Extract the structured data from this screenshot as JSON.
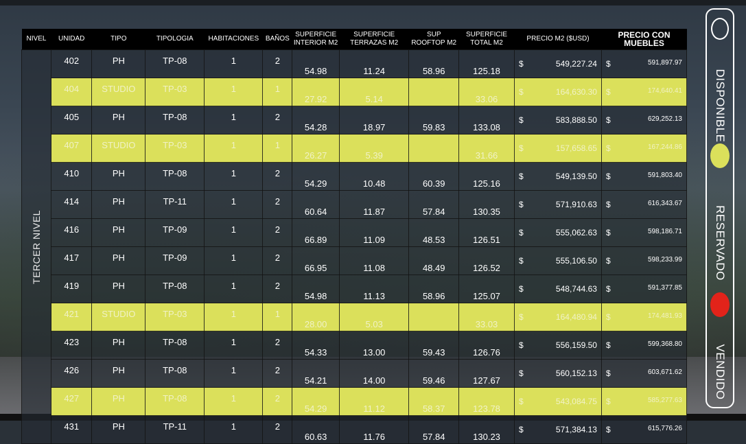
{
  "headers": [
    "NIVEL",
    "UNIDAD",
    "TIPO",
    "TIPOLOGIA",
    "HABITACIONES",
    "BAÑOS",
    "SUPERFICIE INTERIOR M2",
    "SUPERFICIE TERRAZAS M2",
    "SUP ROOFTOP M2",
    "SUPERFICIE TOTAL M2",
    "PRECIO M2 ($USD)",
    "PRECIO CON MUEBLES"
  ],
  "level_label": "TERCER NIVEL",
  "currency_symbol": "$",
  "rows": [
    {
      "unidad": "402",
      "tipo": "PH",
      "tipologia": "TP-08",
      "hab": "1",
      "banos": "2",
      "interior": "54.98",
      "terrazas": "11.24",
      "rooftop": "58.96",
      "total": "125.18",
      "precio": "549,227.24",
      "muebles": "591,897.97",
      "status": "disponible"
    },
    {
      "unidad": "404",
      "tipo": "STUDIO",
      "tipologia": "TP-03",
      "hab": "1",
      "banos": "1",
      "interior": "27.92",
      "terrazas": "5.14",
      "rooftop": "",
      "total": "33.06",
      "precio": "164,630.30",
      "muebles": "174,640.41",
      "status": "reservado"
    },
    {
      "unidad": "405",
      "tipo": "PH",
      "tipologia": "TP-08",
      "hab": "1",
      "banos": "2",
      "interior": "54.28",
      "terrazas": "18.97",
      "rooftop": "59.83",
      "total": "133.08",
      "precio": "583,888.50",
      "muebles": "629,252.13",
      "status": "disponible"
    },
    {
      "unidad": "407",
      "tipo": "STUDIO",
      "tipologia": "TP-03",
      "hab": "1",
      "banos": "1",
      "interior": "26.27",
      "terrazas": "5.39",
      "rooftop": "",
      "total": "31.66",
      "precio": "157,658.65",
      "muebles": "167,244.86",
      "status": "reservado"
    },
    {
      "unidad": "410",
      "tipo": "PH",
      "tipologia": "TP-08",
      "hab": "1",
      "banos": "2",
      "interior": "54.29",
      "terrazas": "10.48",
      "rooftop": "60.39",
      "total": "125.16",
      "precio": "549,139.50",
      "muebles": "591,803.40",
      "status": "disponible"
    },
    {
      "unidad": "414",
      "tipo": "PH",
      "tipologia": "TP-11",
      "hab": "1",
      "banos": "2",
      "interior": "60.64",
      "terrazas": "11.87",
      "rooftop": "57.84",
      "total": "130.35",
      "precio": "571,910.63",
      "muebles": "616,343.67",
      "status": "disponible"
    },
    {
      "unidad": "416",
      "tipo": "PH",
      "tipologia": "TP-09",
      "hab": "1",
      "banos": "2",
      "interior": "66.89",
      "terrazas": "11.09",
      "rooftop": "48.53",
      "total": "126.51",
      "precio": "555,062.63",
      "muebles": "598,186.71",
      "status": "disponible"
    },
    {
      "unidad": "417",
      "tipo": "PH",
      "tipologia": "TP-09",
      "hab": "1",
      "banos": "2",
      "interior": "66.95",
      "terrazas": "11.08",
      "rooftop": "48.49",
      "total": "126.52",
      "precio": "555,106.50",
      "muebles": "598,233.99",
      "status": "disponible"
    },
    {
      "unidad": "419",
      "tipo": "PH",
      "tipologia": "TP-08",
      "hab": "1",
      "banos": "2",
      "interior": "54.98",
      "terrazas": "11.13",
      "rooftop": "58.96",
      "total": "125.07",
      "precio": "548,744.63",
      "muebles": "591,377.85",
      "status": "disponible"
    },
    {
      "unidad": "421",
      "tipo": "STUDIO",
      "tipologia": "TP-03",
      "hab": "1",
      "banos": "1",
      "interior": "28.00",
      "terrazas": "5.03",
      "rooftop": "",
      "total": "33.03",
      "precio": "164,480.94",
      "muebles": "174,481.93",
      "status": "reservado"
    },
    {
      "unidad": "423",
      "tipo": "PH",
      "tipologia": "TP-08",
      "hab": "1",
      "banos": "2",
      "interior": "54.33",
      "terrazas": "13.00",
      "rooftop": "59.43",
      "total": "126.76",
      "precio": "556,159.50",
      "muebles": "599,368.80",
      "status": "disponible"
    },
    {
      "unidad": "426",
      "tipo": "PH",
      "tipologia": "TP-08",
      "hab": "1",
      "banos": "2",
      "interior": "54.21",
      "terrazas": "14.00",
      "rooftop": "59.46",
      "total": "127.67",
      "precio": "560,152.13",
      "muebles": "603,671.62",
      "status": "disponible"
    },
    {
      "unidad": "427",
      "tipo": "PH",
      "tipologia": "TP-08",
      "hab": "1",
      "banos": "2",
      "interior": "54.29",
      "terrazas": "11.12",
      "rooftop": "58.37",
      "total": "123.78",
      "precio": "543,084.75",
      "muebles": "585,277.63",
      "status": "reservado"
    },
    {
      "unidad": "431",
      "tipo": "PH",
      "tipologia": "TP-11",
      "hab": "1",
      "banos": "2",
      "interior": "60.63",
      "terrazas": "11.76",
      "rooftop": "57.84",
      "total": "130.23",
      "precio": "571,384.13",
      "muebles": "615,776.26",
      "status": "disponible"
    }
  ],
  "legend": {
    "disponible": "DISPONIBLE",
    "reservado": "RESERVADO",
    "vendido": "VENDIDO"
  },
  "colors": {
    "reservado": "#dbe05b",
    "vendido": "#e2231a",
    "header_bg": "#000000"
  }
}
